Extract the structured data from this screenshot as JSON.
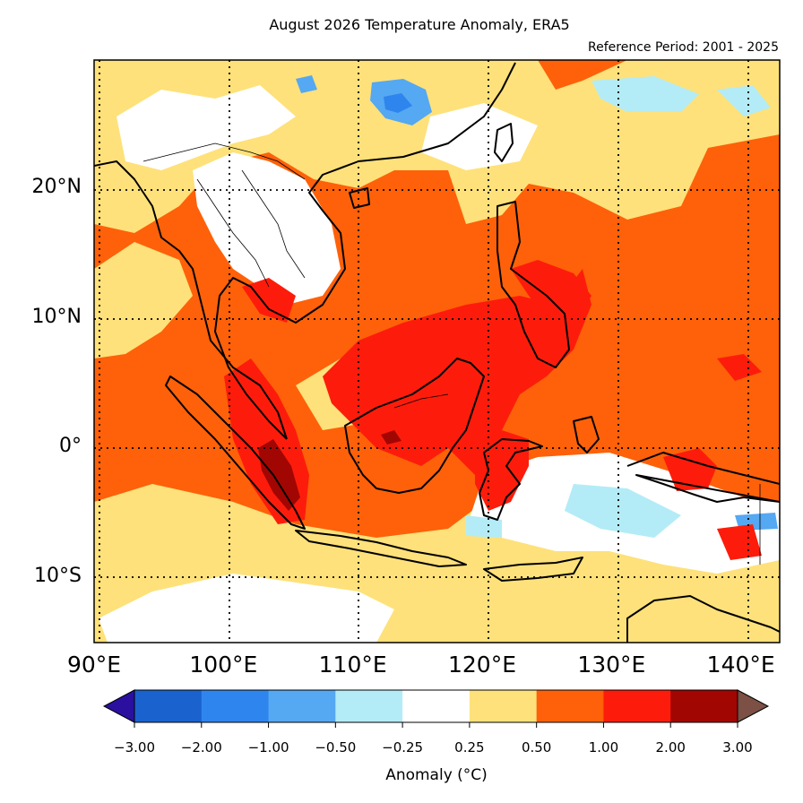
{
  "header": {
    "title": "August 2026 Temperature Anomaly, ERA5",
    "reference": "Reference Period: 2001 - 2025"
  },
  "map": {
    "lon_range": [
      90,
      143
    ],
    "lat_range": [
      -15,
      30
    ],
    "lon_ticks": [
      {
        "value": 90,
        "label": "90°E"
      },
      {
        "value": 100,
        "label": "100°E"
      },
      {
        "value": 110,
        "label": "110°E"
      },
      {
        "value": 120,
        "label": "120°E"
      },
      {
        "value": 130,
        "label": "130°E"
      },
      {
        "value": 140,
        "label": "140°E"
      }
    ],
    "lat_ticks": [
      {
        "value": 20,
        "label": "20°N"
      },
      {
        "value": 10,
        "label": "10°N"
      },
      {
        "value": 0,
        "label": "0°"
      },
      {
        "value": -10,
        "label": "10°S"
      }
    ],
    "gridlines": "dotted"
  },
  "colorbar": {
    "label": "Anomaly (°C)",
    "extend": "both",
    "under_color": "#2b10a0",
    "over_color": "#7c5045",
    "bins": [
      {
        "low": -3.0,
        "high": -2.0,
        "color": "#1a63cf"
      },
      {
        "low": -2.0,
        "high": -1.0,
        "color": "#2f85ee"
      },
      {
        "low": -1.0,
        "high": -0.5,
        "color": "#55a8f2"
      },
      {
        "low": -0.5,
        "high": -0.25,
        "color": "#b3ecf6"
      },
      {
        "low": -0.25,
        "high": 0.25,
        "color": "#ffffff"
      },
      {
        "low": 0.25,
        "high": 0.5,
        "color": "#fee17a"
      },
      {
        "low": 0.5,
        "high": 1.0,
        "color": "#fe6109"
      },
      {
        "low": 1.0,
        "high": 2.0,
        "color": "#fd1c0b"
      },
      {
        "low": 2.0,
        "high": 3.0,
        "color": "#a20603"
      }
    ],
    "tick_labels": [
      "−3.00",
      "−2.00",
      "−1.00",
      "−0.50",
      "−0.25",
      "0.25",
      "0.50",
      "1.00",
      "2.00",
      "3.00"
    ]
  }
}
